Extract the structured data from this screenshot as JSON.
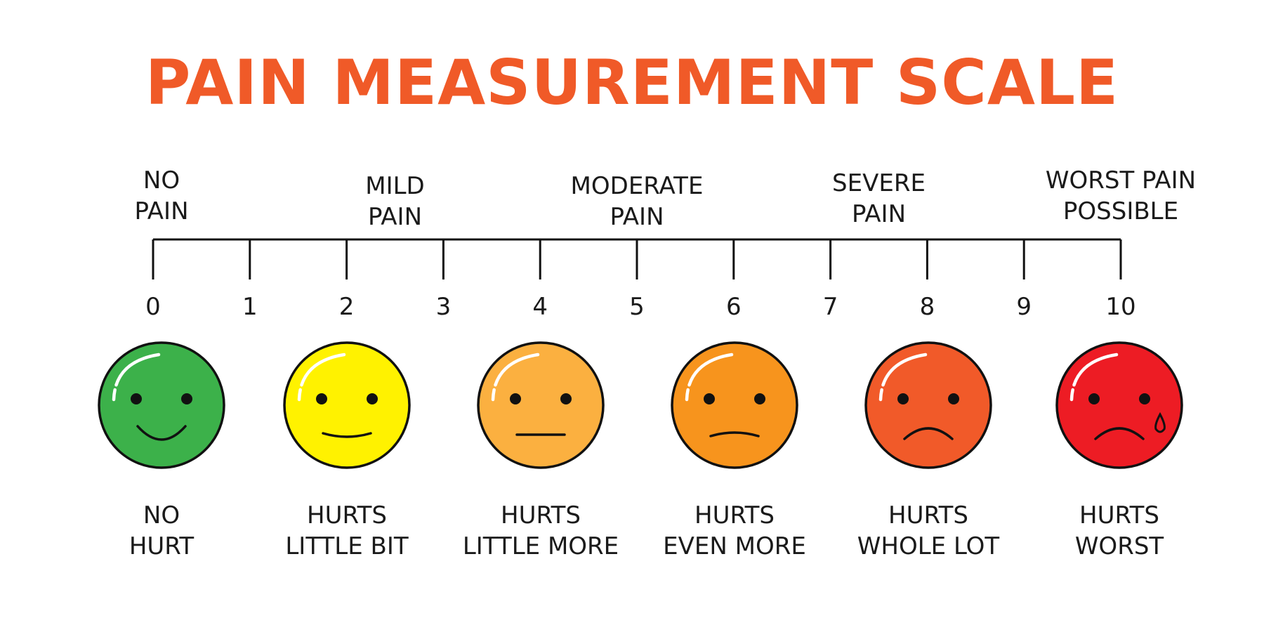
{
  "title": "PAIN MEASUREMENT SCALE",
  "colors": {
    "title": "#F05A28",
    "line": "#111111"
  },
  "scale": {
    "min": 0,
    "max": 10,
    "ticks": [
      "0",
      "1",
      "2",
      "3",
      "4",
      "5",
      "6",
      "7",
      "8",
      "9",
      "10"
    ]
  },
  "intensity_labels": [
    {
      "at": 0,
      "lines": [
        "NO",
        "PAIN"
      ]
    },
    {
      "at": 2.5,
      "lines": [
        "MILD",
        "PAIN"
      ]
    },
    {
      "at": 5,
      "lines": [
        "MODERATE",
        "PAIN"
      ]
    },
    {
      "at": 7.5,
      "lines": [
        "SEVERE",
        "PAIN"
      ]
    },
    {
      "at": 10,
      "lines": [
        "WORST PAIN",
        "POSSIBLE"
      ]
    }
  ],
  "faces": [
    {
      "icon": "smiling-face-icon",
      "mouth": "smile",
      "color": "#3CB14A",
      "lines": [
        "NO",
        "HURT"
      ]
    },
    {
      "icon": "slightly-smiling-face-icon",
      "mouth": "slight-smile",
      "color": "#FFF200",
      "lines": [
        "HURTS",
        "LITTLE BIT"
      ]
    },
    {
      "icon": "neutral-face-icon",
      "mouth": "flat",
      "color": "#FBB040",
      "lines": [
        "HURTS",
        "LITTLE MORE"
      ]
    },
    {
      "icon": "slightly-frowning-face-icon",
      "mouth": "slight-frown",
      "color": "#F7941D",
      "lines": [
        "HURTS",
        "EVEN MORE"
      ]
    },
    {
      "icon": "frowning-face-icon",
      "mouth": "frown",
      "color": "#F15A29",
      "lines": [
        "HURTS",
        "WHOLE LOT"
      ]
    },
    {
      "icon": "crying-face-icon",
      "mouth": "frown-tear",
      "color": "#ED1C24",
      "lines": [
        "HURTS",
        "WORST"
      ]
    }
  ]
}
